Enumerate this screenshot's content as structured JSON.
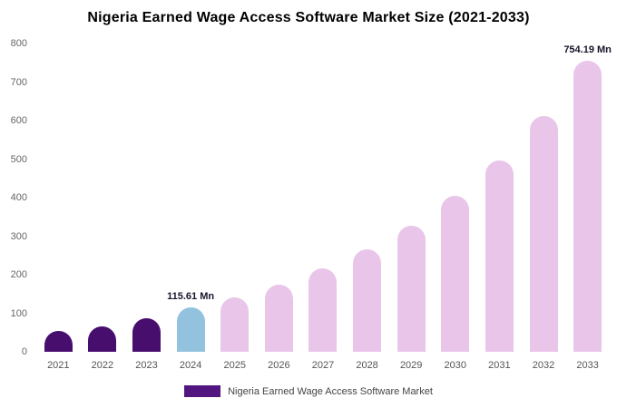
{
  "title": "Nigeria Earned Wage Access Software Market Size (2021-2033)",
  "chart_data": {
    "type": "bar",
    "categories": [
      "2021",
      "2022",
      "2023",
      "2024",
      "2025",
      "2026",
      "2027",
      "2028",
      "2029",
      "2030",
      "2031",
      "2032",
      "2033"
    ],
    "values": [
      55,
      66,
      88,
      115.61,
      142,
      175,
      216,
      266,
      328,
      404,
      497,
      612,
      754.19
    ],
    "bar_colors": [
      "#470e6e",
      "#470e6e",
      "#470e6e",
      "#93c2de",
      "#e9c6e9",
      "#e9c6e9",
      "#e9c6e9",
      "#e9c6e9",
      "#e9c6e9",
      "#e9c6e9",
      "#e9c6e9",
      "#e9c6e9",
      "#e9c6e9"
    ],
    "annotations": {
      "2024": "115.61 Mn",
      "2033": "754.19 Mn"
    },
    "ylim": [
      0,
      800
    ],
    "yticks": [
      0,
      100,
      200,
      300,
      400,
      500,
      600,
      700,
      800
    ],
    "grid": false,
    "legend": "Nigeria Earned Wage Access Software Market",
    "legend_color": "#531580",
    "legend_position": "bottom",
    "xlabel": "",
    "ylabel": "",
    "title": "Nigeria Earned Wage Access Software Market Size (2021-2033)"
  }
}
